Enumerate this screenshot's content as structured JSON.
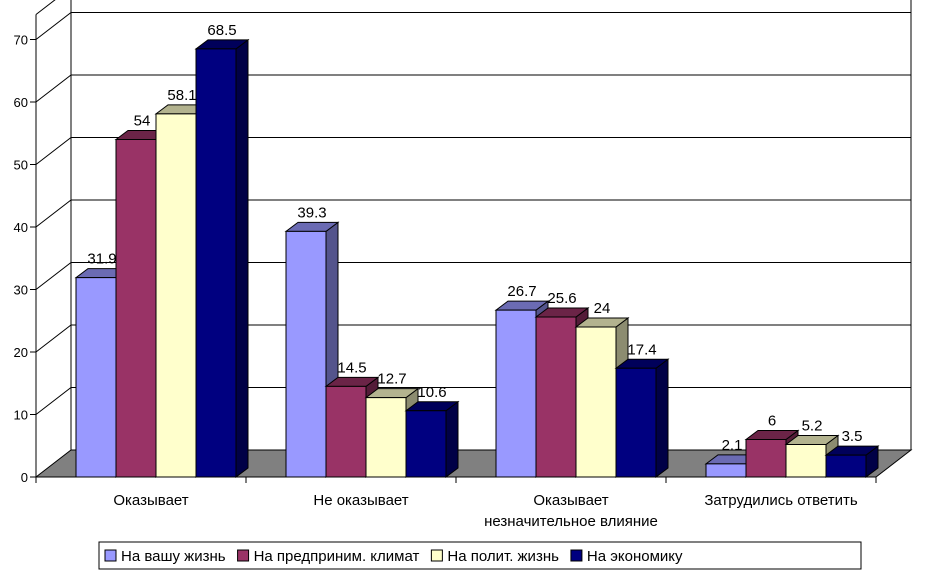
{
  "chart_data": {
    "type": "bar",
    "title": "",
    "xlabel": "",
    "ylabel": "",
    "ylim": [
      0,
      70
    ],
    "yticks": [
      0,
      10,
      20,
      30,
      40,
      50,
      60,
      70
    ],
    "grid": true,
    "legend_position": "bottom",
    "categories": [
      [
        "Оказывает"
      ],
      [
        "Не оказывает"
      ],
      [
        "Оказывает",
        "незначительное влияние"
      ],
      [
        "Затрудились ответить"
      ]
    ],
    "series": [
      {
        "name": "На вашу жизнь",
        "color": "#9999ff",
        "values": [
          31.9,
          39.3,
          26.7,
          2.1
        ]
      },
      {
        "name": "На предприним. климат",
        "color": "#993366",
        "values": [
          54,
          14.5,
          25.6,
          6
        ]
      },
      {
        "name": "На полит. жизнь",
        "color": "#ffffcc",
        "values": [
          58.1,
          12.7,
          24,
          5.2
        ]
      },
      {
        "name": "На экономику",
        "color": "#000080",
        "values": [
          68.5,
          10.6,
          17.4,
          3.5
        ]
      }
    ]
  }
}
